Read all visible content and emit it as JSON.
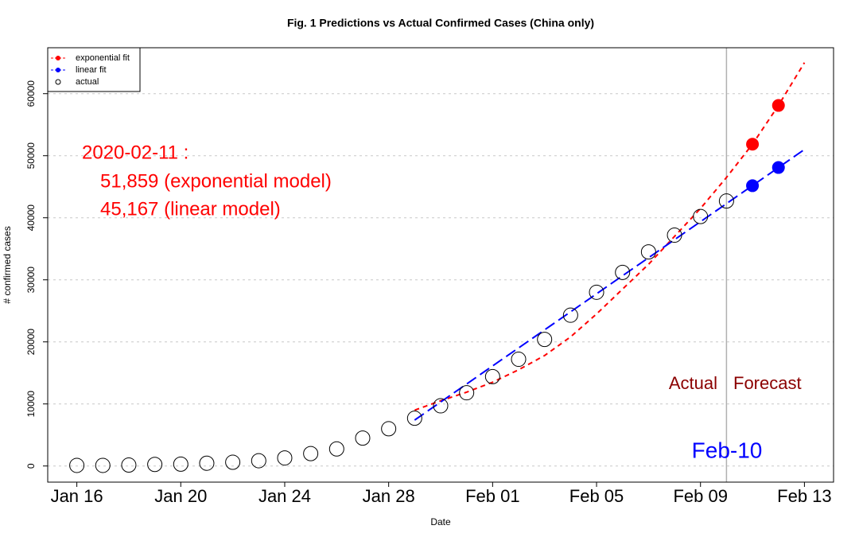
{
  "chart_data": {
    "type": "line",
    "title": "Fig. 1 Predictions vs Actual Confirmed Cases (China only)",
    "x_label": "Date",
    "y_label": "# confirmed cases",
    "xlim": [
      "2020-01-14T21:07Z",
      "2020-02-14T02:53Z"
    ],
    "ylim": [
      -2600,
      67400
    ],
    "xticks": [
      {
        "value": "2020-01-16",
        "label": "Jan 16"
      },
      {
        "value": "2020-01-20",
        "label": "Jan 20"
      },
      {
        "value": "2020-01-24",
        "label": "Jan 24"
      },
      {
        "value": "2020-01-28",
        "label": "Jan 28"
      },
      {
        "value": "2020-02-01",
        "label": "Feb 01"
      },
      {
        "value": "2020-02-05",
        "label": "Feb 05"
      },
      {
        "value": "2020-02-09",
        "label": "Feb 09"
      },
      {
        "value": "2020-02-13",
        "label": "Feb 13"
      }
    ],
    "yticks": [
      0,
      10000,
      20000,
      30000,
      40000,
      50000,
      60000
    ],
    "grid": true,
    "legend": "top-left",
    "vline": "2020-02-10",
    "series": [
      {
        "name": "exponential fit",
        "color": "#ff0000",
        "style": "dashed",
        "x": [
          "2020-01-29",
          "2020-01-30",
          "2020-01-31",
          "2020-02-01",
          "2020-02-02",
          "2020-02-03",
          "2020-02-04",
          "2020-02-05",
          "2020-02-06",
          "2020-02-07",
          "2020-02-08",
          "2020-02-09",
          "2020-02-10",
          "2020-02-11",
          "2020-02-12",
          "2020-02-13"
        ],
        "values": [
          9000,
          10500,
          11900,
          13500,
          15500,
          17800,
          20800,
          24500,
          28500,
          32500,
          37000,
          41500,
          46500,
          51859,
          58100,
          65000
        ],
        "points_x": [
          "2020-02-11",
          "2020-02-12"
        ],
        "points_values": [
          51859,
          58100
        ]
      },
      {
        "name": "linear fit",
        "color": "#0000ff",
        "style": "longdash",
        "x": [
          "2020-01-29",
          "2020-02-13"
        ],
        "values": [
          7400,
          51000
        ],
        "points_x": [
          "2020-02-11",
          "2020-02-12"
        ],
        "points_values": [
          45167,
          48100
        ]
      },
      {
        "name": "actual",
        "color": "#000000",
        "style": "circles",
        "x": [
          "2020-01-16",
          "2020-01-17",
          "2020-01-18",
          "2020-01-19",
          "2020-01-20",
          "2020-01-21",
          "2020-01-22",
          "2020-01-23",
          "2020-01-24",
          "2020-01-25",
          "2020-01-26",
          "2020-01-27",
          "2020-01-28",
          "2020-01-29",
          "2020-01-30",
          "2020-01-31",
          "2020-02-01",
          "2020-02-02",
          "2020-02-03",
          "2020-02-04",
          "2020-02-05",
          "2020-02-06",
          "2020-02-07",
          "2020-02-08",
          "2020-02-09",
          "2020-02-10"
        ],
        "values": [
          100,
          100,
          150,
          250,
          300,
          450,
          600,
          850,
          1300,
          2000,
          2750,
          4500,
          6000,
          7700,
          9700,
          11800,
          14400,
          17200,
          20400,
          24300,
          28000,
          31200,
          34500,
          37200,
          40200,
          42700
        ]
      }
    ],
    "annotations": [
      {
        "text": "2020-02-11 :",
        "color": "#ff0000"
      },
      {
        "text": "51,859 (exponential model)",
        "color": "#ff0000"
      },
      {
        "text": "45,167 (linear model)",
        "color": "#ff0000"
      },
      {
        "text": "Actual",
        "color": "#8b0000"
      },
      {
        "text": "Forecast",
        "color": "#8b0000"
      },
      {
        "text": "Feb-10",
        "color": "#0000ff"
      }
    ]
  }
}
